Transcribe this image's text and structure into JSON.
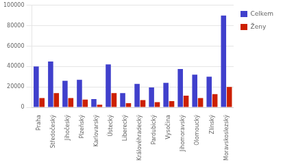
{
  "chart_data": {
    "type": "bar",
    "categories": [
      "Praha",
      "Středočeský",
      "Jihočeský",
      "Plzeňský",
      "Karlovarský",
      "Ústecký",
      "Liberecký",
      "Královéhradecký",
      "Pardubický",
      "Vysočina",
      "Jihomoravský",
      "Olomoucký",
      "Zlínský",
      "Moravskoslezský"
    ],
    "series": [
      {
        "name": "Celkem",
        "color": "#4040CC",
        "values": [
          40000,
          45000,
          26000,
          27000,
          8000,
          42000,
          14000,
          23000,
          19500,
          24000,
          37500,
          32000,
          30000,
          90000
        ]
      },
      {
        "name": "Ženy",
        "color": "#CC2000",
        "values": [
          9000,
          14000,
          9000,
          7500,
          2500,
          14000,
          4000,
          7000,
          5000,
          6000,
          11500,
          9000,
          13000,
          20000
        ]
      }
    ],
    "ylim": [
      0,
      100000
    ],
    "yticks": [
      0,
      20000,
      40000,
      60000,
      80000,
      100000
    ],
    "grid": true,
    "legend": "right"
  }
}
